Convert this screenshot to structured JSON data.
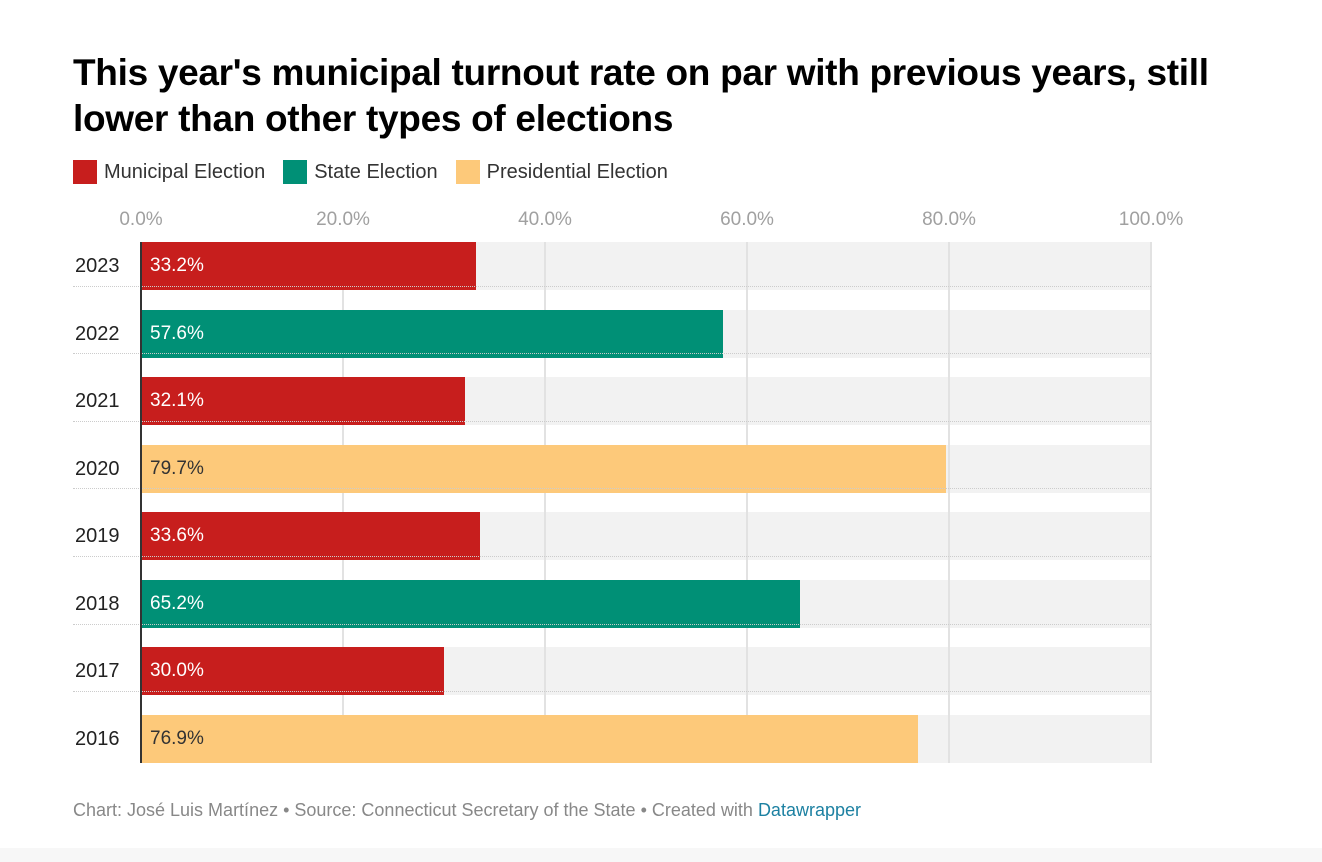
{
  "chart_data": {
    "type": "bar",
    "orientation": "horizontal",
    "title": "This year's municipal turnout rate on par with previous years, still lower than other types of elections",
    "categories": [
      "2023",
      "2022",
      "2021",
      "2020",
      "2019",
      "2018",
      "2017",
      "2016"
    ],
    "values": [
      33.2,
      57.6,
      32.1,
      79.7,
      33.6,
      65.2,
      30.0,
      76.9
    ],
    "value_labels": [
      "33.2%",
      "57.6%",
      "32.1%",
      "79.7%",
      "33.6%",
      "65.2%",
      "30.0%",
      "76.9%"
    ],
    "types": [
      "Municipal Election",
      "State Election",
      "Municipal Election",
      "Presidential Election",
      "Municipal Election",
      "State Election",
      "Municipal Election",
      "Presidential Election"
    ],
    "legend": [
      {
        "label": "Municipal Election",
        "color": "#c71e1d",
        "text_color": "#ffffff"
      },
      {
        "label": "State Election",
        "color": "#009076",
        "text_color": "#ffffff"
      },
      {
        "label": "Presidential Election",
        "color": "#fdc97a",
        "text_color": "#333333"
      }
    ],
    "xlim": [
      0,
      100
    ],
    "xticks": [
      0,
      20,
      40,
      60,
      80,
      100
    ],
    "xtick_labels": [
      "0.0%",
      "20.0%",
      "40.0%",
      "60.0%",
      "80.0%",
      "100.0%"
    ],
    "grid": true,
    "legend_position": "top-left"
  },
  "footer": {
    "text": "Chart: José Luis Martínez • Source: Connecticut Secretary of the State • Created with ",
    "link": "Datawrapper"
  }
}
